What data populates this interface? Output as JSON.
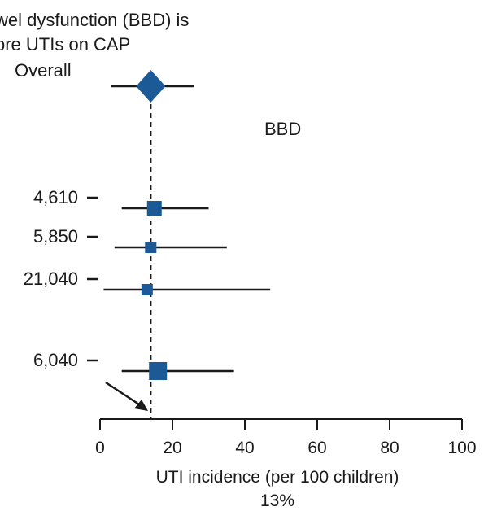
{
  "chart_data": {
    "type": "forest",
    "title_lines": [
      "wel dysfunction (BBD) is",
      "ore UTIs on CAP"
    ],
    "overall": {
      "label": "Overall",
      "estimate": 14,
      "ci": [
        3,
        26
      ],
      "color": "#1b5a96"
    },
    "group_label": "BBD",
    "studies": [
      {
        "label": "4,610",
        "estimate": 15,
        "ci": [
          6,
          30
        ]
      },
      {
        "label": "5,850",
        "estimate": 14,
        "ci": [
          4,
          35
        ]
      },
      {
        "label": "21,040",
        "estimate": 13,
        "ci": [
          1,
          47
        ]
      },
      {
        "label": "6,040",
        "estimate": 16,
        "ci": [
          6,
          37
        ]
      }
    ],
    "reference_line": 14,
    "pointer_label": "13%",
    "xlabel": "UTI incidence (per 100 children)",
    "xlim": [
      0,
      100
    ],
    "xticks": [
      0,
      20,
      40,
      60,
      80,
      100
    ],
    "marker_color": "#1b5a96"
  }
}
